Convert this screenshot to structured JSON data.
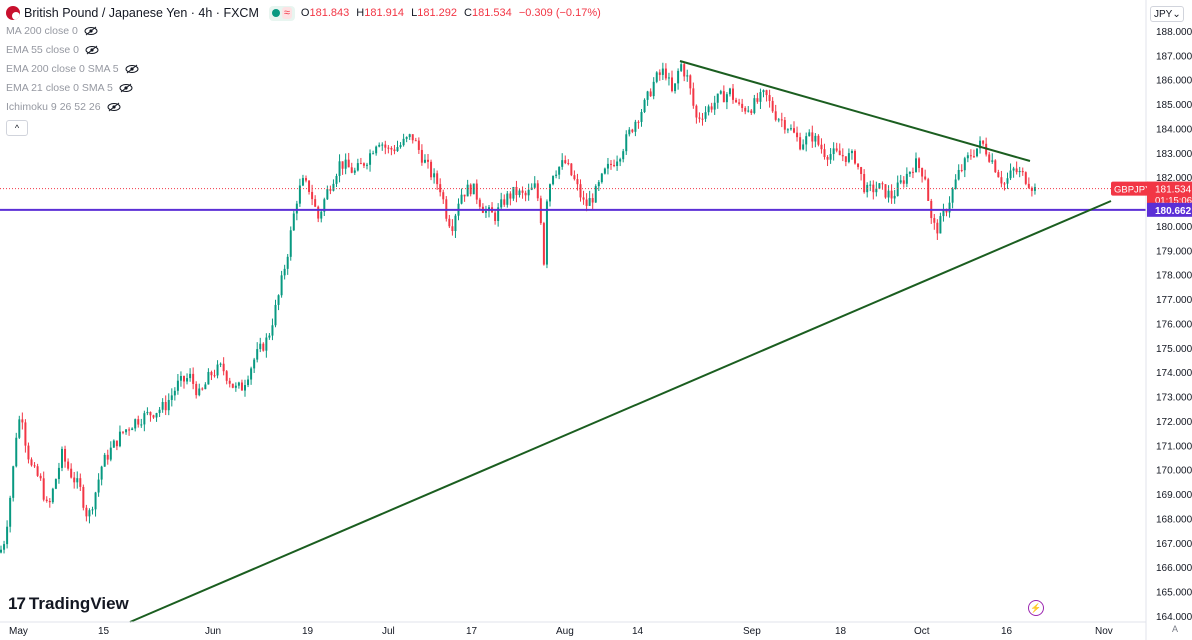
{
  "header": {
    "title": "British Pound / Japanese Yen · 4h · FXCM",
    "ohlc": [
      {
        "key": "O",
        "value": "181.843"
      },
      {
        "key": "H",
        "value": "181.914"
      },
      {
        "key": "L",
        "value": "181.292"
      },
      {
        "key": "C",
        "value": "181.534"
      }
    ],
    "change": "−0.309 (−0.17%)"
  },
  "indicators": [
    {
      "label": "MA 200 close 0"
    },
    {
      "label": "EMA 55 close 0"
    },
    {
      "label": "EMA 200 close 0 SMA 5"
    },
    {
      "label": "EMA 21 close 0 SMA 5"
    },
    {
      "label": "Ichimoku 9 26 52 26"
    }
  ],
  "collapse_glyph": "^",
  "currency_selector": {
    "value": "JPY",
    "chevron": "⌄"
  },
  "logo": {
    "mark": "17",
    "text": "TradingView"
  },
  "auto_label": "A",
  "colors": {
    "up": "#089981",
    "down": "#f23645",
    "trendline": "#1b5e20",
    "horizontal_line": "#5b2fd6",
    "price_label": "#f23645",
    "hline_label": "#5b2fd6"
  },
  "price_tag": {
    "symbol": "GBPJPY",
    "price": "181.534",
    "countdown": "01:15:06"
  },
  "hline_tag": {
    "price": "180.662"
  },
  "chart_data": {
    "type": "candlestick",
    "symbol": "GBPJPY",
    "ylim": [
      164,
      188.8
    ],
    "y_ticks": [
      "188.000",
      "187.000",
      "186.000",
      "185.000",
      "184.000",
      "183.000",
      "182.000",
      "181.000",
      "180.000",
      "179.000",
      "178.000",
      "177.000",
      "176.000",
      "175.000",
      "174.000",
      "173.000",
      "172.000",
      "171.000",
      "170.000",
      "169.000",
      "168.000",
      "167.000",
      "166.000",
      "165.000",
      "164.000"
    ],
    "x_ticks": [
      "May",
      "15",
      "Jun",
      "19",
      "Jul",
      "17",
      "Aug",
      "14",
      "Sep",
      "18",
      "Oct",
      "16",
      "Nov"
    ],
    "path": [
      [
        0,
        166.6
      ],
      [
        5,
        167.2
      ],
      [
        12,
        169.5
      ],
      [
        17,
        171.8
      ],
      [
        22,
        172.3
      ],
      [
        26,
        171.0
      ],
      [
        32,
        170.0
      ],
      [
        40,
        169.6
      ],
      [
        48,
        168.3
      ],
      [
        55,
        169.5
      ],
      [
        62,
        170.6
      ],
      [
        70,
        169.9
      ],
      [
        80,
        169.2
      ],
      [
        88,
        168.0
      ],
      [
        95,
        169.0
      ],
      [
        102,
        170.2
      ],
      [
        112,
        170.9
      ],
      [
        122,
        171.5
      ],
      [
        135,
        172.0
      ],
      [
        150,
        172.3
      ],
      [
        165,
        172.6
      ],
      [
        178,
        173.5
      ],
      [
        190,
        173.8
      ],
      [
        200,
        173.0
      ],
      [
        210,
        173.9
      ],
      [
        222,
        174.2
      ],
      [
        235,
        173.3
      ],
      [
        242,
        173.4
      ],
      [
        255,
        174.6
      ],
      [
        268,
        175.4
      ],
      [
        278,
        177.0
      ],
      [
        288,
        179.0
      ],
      [
        296,
        181.0
      ],
      [
        302,
        181.8
      ],
      [
        310,
        181.5
      ],
      [
        318,
        180.3
      ],
      [
        328,
        181.5
      ],
      [
        340,
        182.6
      ],
      [
        355,
        182.2
      ],
      [
        368,
        182.8
      ],
      [
        378,
        183.6
      ],
      [
        388,
        183.1
      ],
      [
        400,
        183.3
      ],
      [
        412,
        183.7
      ],
      [
        425,
        182.6
      ],
      [
        433,
        182.0
      ],
      [
        440,
        181.6
      ],
      [
        447,
        180.4
      ],
      [
        452,
        180.0
      ],
      [
        460,
        181.3
      ],
      [
        472,
        181.6
      ],
      [
        485,
        180.6
      ],
      [
        495,
        180.4
      ],
      [
        505,
        181.1
      ],
      [
        515,
        181.4
      ],
      [
        525,
        181.2
      ],
      [
        535,
        181.6
      ],
      [
        540,
        180.8
      ],
      [
        544,
        178.5
      ],
      [
        546,
        181.0
      ],
      [
        552,
        182.2
      ],
      [
        565,
        182.6
      ],
      [
        575,
        181.8
      ],
      [
        585,
        180.8
      ],
      [
        595,
        181.3
      ],
      [
        605,
        182.2
      ],
      [
        620,
        183.0
      ],
      [
        635,
        184.3
      ],
      [
        645,
        185.0
      ],
      [
        655,
        186.0
      ],
      [
        665,
        186.4
      ],
      [
        673,
        185.3
      ],
      [
        680,
        186.7
      ],
      [
        688,
        186.0
      ],
      [
        696,
        184.4
      ],
      [
        705,
        184.7
      ],
      [
        718,
        185.2
      ],
      [
        730,
        185.5
      ],
      [
        740,
        184.8
      ],
      [
        752,
        184.9
      ],
      [
        765,
        185.4
      ],
      [
        775,
        184.6
      ],
      [
        788,
        184.1
      ],
      [
        800,
        183.4
      ],
      [
        812,
        183.7
      ],
      [
        825,
        183.0
      ],
      [
        840,
        182.9
      ],
      [
        855,
        182.8
      ],
      [
        866,
        181.4
      ],
      [
        878,
        181.6
      ],
      [
        892,
        181.2
      ],
      [
        905,
        182.0
      ],
      [
        915,
        182.6
      ],
      [
        925,
        182.1
      ],
      [
        932,
        180.0
      ],
      [
        938,
        179.9
      ],
      [
        948,
        180.9
      ],
      [
        958,
        182.1
      ],
      [
        970,
        182.9
      ],
      [
        982,
        183.4
      ],
      [
        992,
        182.7
      ],
      [
        1004,
        181.7
      ],
      [
        1014,
        182.3
      ],
      [
        1025,
        182.0
      ],
      [
        1035,
        181.5
      ]
    ]
  }
}
